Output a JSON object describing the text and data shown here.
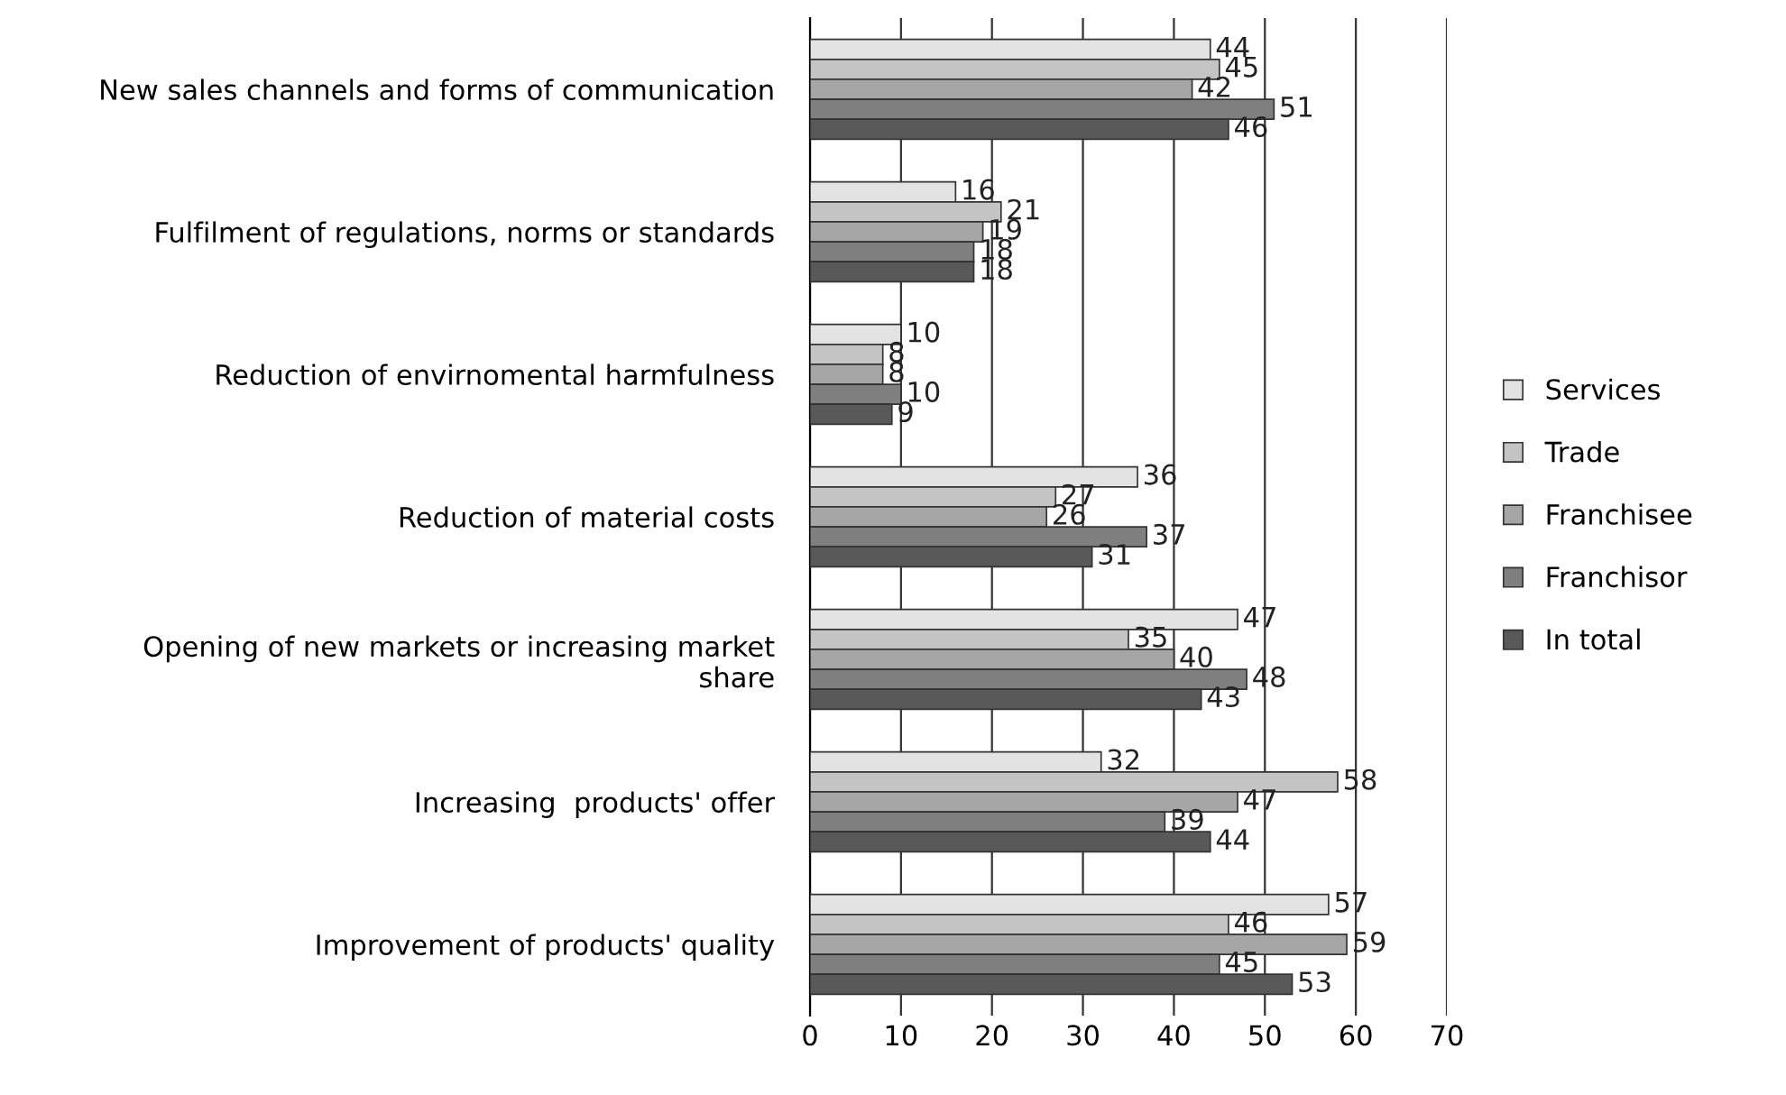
{
  "chart_data": {
    "type": "bar",
    "orientation": "horizontal",
    "categories": [
      "New sales channels and forms of communication",
      "Fulfilment of regulations, norms or standards",
      "Reduction of envirnomental harmfulness",
      "Reduction of material costs",
      "Opening of new markets or increasing market\nshare",
      "Increasing  products' offer",
      "Improvement of products' quality"
    ],
    "series": [
      {
        "name": "Services",
        "color": "#e3e3e3",
        "values": [
          44,
          16,
          10,
          36,
          47,
          32,
          57
        ]
      },
      {
        "name": "Trade",
        "color": "#c4c4c4",
        "values": [
          45,
          21,
          8,
          27,
          35,
          58,
          46
        ]
      },
      {
        "name": "Franchisee",
        "color": "#a6a6a6",
        "values": [
          42,
          19,
          8,
          26,
          40,
          47,
          59
        ]
      },
      {
        "name": "Franchisor",
        "color": "#7f7f7f",
        "values": [
          51,
          18,
          10,
          37,
          48,
          39,
          45
        ]
      },
      {
        "name": "In total",
        "color": "#595959",
        "values": [
          46,
          18,
          9,
          31,
          43,
          44,
          53
        ]
      }
    ],
    "xlim": [
      0,
      70
    ],
    "xticks": [
      0,
      10,
      20,
      30,
      40,
      50,
      60,
      70
    ],
    "grid": "x",
    "legend": "right",
    "data_labels": true
  }
}
